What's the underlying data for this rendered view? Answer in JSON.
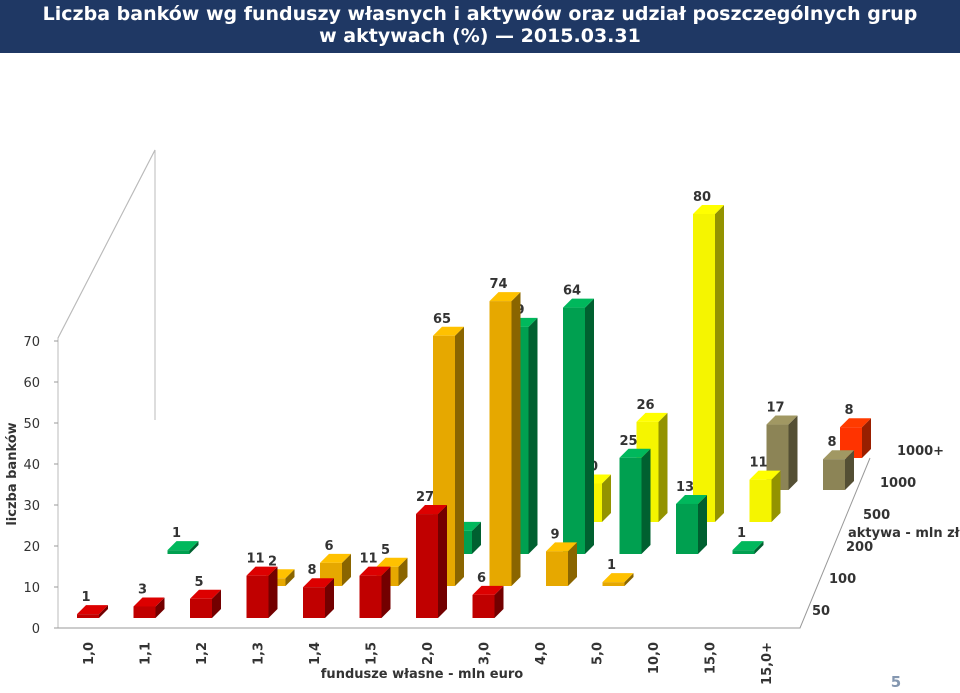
{
  "chart_data": {
    "type": "bar3d",
    "title_lines": [
      "Liczba banków wg funduszy własnych i aktywów oraz udział poszczególnych grup",
      "w aktywach (%) — 2015.03.31"
    ],
    "x_label": "fundusze własne - mln euro",
    "y_label": "liczba banków",
    "z_label": "aktywa - mln zł",
    "categories": [
      "1,0",
      "1,1",
      "1,2",
      "1,3",
      "1,4",
      "1,5",
      "2,0",
      "3,0",
      "4,0",
      "5,0",
      "10,0",
      "15,0",
      "15,0+"
    ],
    "series": [
      {
        "name": "50",
        "color": "#c00000",
        "values": [
          1,
          3,
          5,
          11,
          8,
          11,
          27,
          6,
          null,
          null,
          null,
          null,
          null
        ]
      },
      {
        "name": "100",
        "color": "#e6a800",
        "values": [
          null,
          null,
          null,
          2,
          6,
          5,
          65,
          74,
          9,
          1,
          null,
          null,
          null
        ]
      },
      {
        "name": "200",
        "color": "#00a050",
        "values": [
          null,
          1,
          null,
          null,
          null,
          null,
          6,
          59,
          64,
          25,
          13,
          1,
          null
        ]
      },
      {
        "name": "500",
        "color": "#f5f500",
        "values": [
          null,
          null,
          null,
          null,
          null,
          null,
          null,
          null,
          10,
          26,
          80,
          11,
          null
        ]
      },
      {
        "name": "1000",
        "color": "#8c8456",
        "values": [
          null,
          null,
          null,
          null,
          null,
          null,
          null,
          null,
          null,
          null,
          null,
          17,
          8
        ]
      },
      {
        "name": "1000+",
        "color": "#ff3300",
        "values": [
          null,
          null,
          null,
          null,
          null,
          null,
          null,
          null,
          null,
          null,
          null,
          null,
          8
        ]
      }
    ],
    "ylim": [
      0,
      70
    ],
    "yticks": [
      0,
      10,
      20,
      30,
      40,
      50,
      60,
      70
    ],
    "page_number": "5"
  }
}
